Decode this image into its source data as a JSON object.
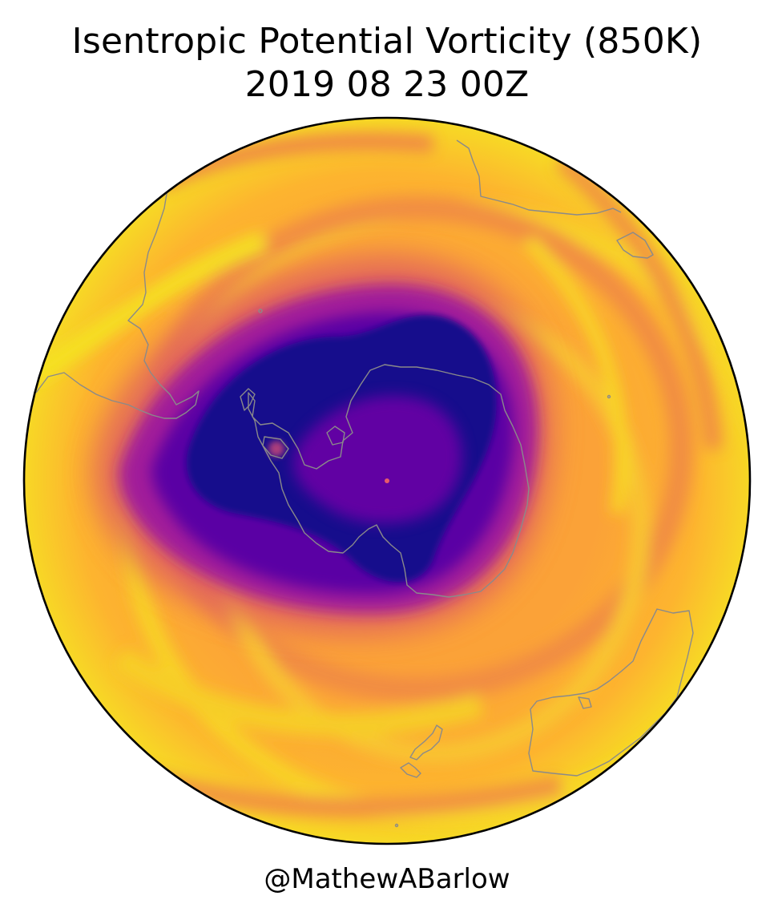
{
  "figure": {
    "title_line1": "Isentropic Potential Vorticity (850K)",
    "title_line2": "2019 08 23 00Z",
    "credit": "@MathewABarlow"
  },
  "map": {
    "projection": "south-polar-orthographic",
    "hemisphere": "Southern",
    "field": "isentropic potential vorticity",
    "colormap": "plasma",
    "colormap_stops": [
      "#0d0887",
      "#5b02a3",
      "#9a179b",
      "#cb4678",
      "#eb7852",
      "#fbb32f",
      "#eff821"
    ],
    "coastline_color": "#8a8a8a",
    "boundary_color": "#000000",
    "features": [
      "polar-vortex",
      "antarctica-coastline",
      "south-america-tip",
      "africa-tip",
      "australia",
      "new-zealand"
    ]
  }
}
